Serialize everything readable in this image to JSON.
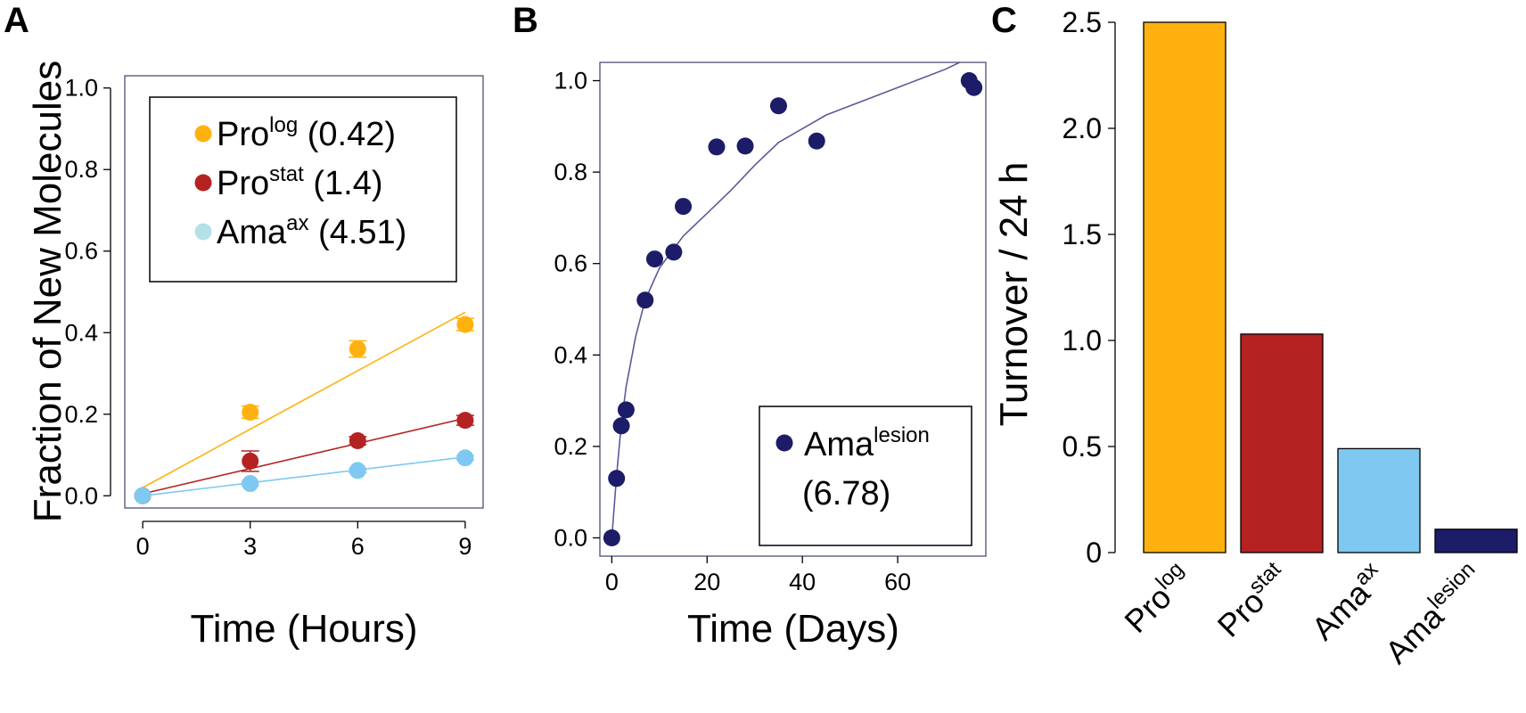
{
  "colors": {
    "prolog": "#FFB20F",
    "prostat": "#B52222",
    "amaax": "#7EC8F2",
    "amaax_legend": "#B4E1E8",
    "amalesion": "#1C1C68",
    "frame": "#4F4F76",
    "axis": "#000000"
  },
  "chart_data": [
    {
      "id": "A",
      "type": "scatter",
      "panel_label": "A",
      "xlabel": "Time (Hours)",
      "ylabel": "Fraction of New Molecules",
      "xlim": [
        -0.5,
        9.5
      ],
      "ylim": [
        -0.03,
        1.03
      ],
      "xticks": [
        0,
        3,
        6,
        9
      ],
      "yticks": [
        0.0,
        0.2,
        0.4,
        0.6,
        0.8,
        1.0
      ],
      "xtick_labels": [
        "0",
        "3",
        "6",
        "9"
      ],
      "ytick_labels": [
        "0.0",
        "0.2",
        "0.4",
        "0.6",
        "0.8",
        "1.0"
      ],
      "grid": false,
      "legend_position": "top-left",
      "legend": [
        {
          "key": "prolog",
          "base": "Pro",
          "sup": "log",
          "value": " (0.42)"
        },
        {
          "key": "prostat",
          "base": "Pro",
          "sup": "stat",
          "value": " (1.4)"
        },
        {
          "key": "amaax",
          "base": "Ama",
          "sup": "ax",
          "value": " (4.51)"
        }
      ],
      "series": [
        {
          "key": "prolog",
          "x": [
            0,
            3,
            6,
            9
          ],
          "y": [
            0.0,
            0.205,
            0.36,
            0.42
          ],
          "err": [
            0.0,
            0.015,
            0.02,
            0.015
          ],
          "fit": {
            "x": [
              0,
              9
            ],
            "y": [
              0.02,
              0.45
            ]
          }
        },
        {
          "key": "prostat",
          "x": [
            0,
            3,
            6,
            9
          ],
          "y": [
            0.0,
            0.085,
            0.135,
            0.185
          ],
          "err": [
            0.0,
            0.025,
            0.01,
            0.012
          ],
          "fit": {
            "x": [
              0,
              9
            ],
            "y": [
              0.005,
              0.19
            ]
          }
        },
        {
          "key": "amaax",
          "x": [
            0,
            3,
            6,
            9
          ],
          "y": [
            0.0,
            0.03,
            0.062,
            0.093
          ],
          "err": [
            0.0,
            0.005,
            0.005,
            0.005
          ],
          "fit": {
            "x": [
              0,
              9
            ],
            "y": [
              0.0,
              0.095
            ]
          }
        }
      ]
    },
    {
      "id": "B",
      "type": "scatter",
      "panel_label": "B",
      "xlabel": "Time (Days)",
      "ylabel": "",
      "xlim": [
        -2.5,
        78.5
      ],
      "ylim": [
        -0.04,
        1.04
      ],
      "xticks": [
        0,
        20,
        40,
        60
      ],
      "yticks": [
        0.0,
        0.2,
        0.4,
        0.6,
        0.8,
        1.0
      ],
      "xtick_labels": [
        "0",
        "20",
        "40",
        "60"
      ],
      "ytick_labels": [
        "0.0",
        "0.2",
        "0.4",
        "0.6",
        "0.8",
        "1.0"
      ],
      "grid": false,
      "legend_position": "bottom-right",
      "legend": [
        {
          "key": "amalesion",
          "base": "Ama",
          "sup": "lesion",
          "value": "(6.78)"
        }
      ],
      "series": [
        {
          "key": "amalesion",
          "x": [
            0,
            1,
            2,
            3,
            7,
            9,
            13,
            15,
            22,
            28,
            35,
            43,
            75,
            76
          ],
          "y": [
            0.0,
            0.13,
            0.245,
            0.28,
            0.52,
            0.61,
            0.625,
            0.725,
            0.855,
            0.857,
            0.945,
            0.868,
            1.0,
            0.985
          ],
          "fit": {
            "x": [
              0,
              1,
              2,
              3,
              5,
              7,
              10,
              15,
              20,
              25,
              30,
              35,
              40,
              45,
              50,
              55,
              60,
              65,
              70,
              73
            ],
            "y": [
              0.0,
              0.135,
              0.25,
              0.33,
              0.44,
              0.52,
              0.59,
              0.66,
              0.71,
              0.76,
              0.815,
              0.865,
              0.895,
              0.925,
              0.945,
              0.965,
              0.985,
              1.005,
              1.025,
              1.04
            ]
          }
        }
      ]
    },
    {
      "id": "C",
      "type": "bar",
      "panel_label": "C",
      "xlabel": "",
      "ylabel": "Turnover / 24 h",
      "ylim": [
        0,
        2.5
      ],
      "yticks": [
        0,
        0.5,
        1.0,
        1.5,
        2.0,
        2.5
      ],
      "ytick_labels": [
        "0",
        "0.5",
        "1.0",
        "1.5",
        "2.0",
        "2.5"
      ],
      "grid": false,
      "categories": [
        {
          "key": "prolog",
          "base": "Pro",
          "sup": "log"
        },
        {
          "key": "prostat",
          "base": "Pro",
          "sup": "stat"
        },
        {
          "key": "amaax",
          "base": "Ama",
          "sup": "ax"
        },
        {
          "key": "amalesion",
          "base": "Ama",
          "sup": "lesion"
        }
      ],
      "values": [
        2.5,
        1.03,
        0.49,
        0.11
      ]
    }
  ]
}
